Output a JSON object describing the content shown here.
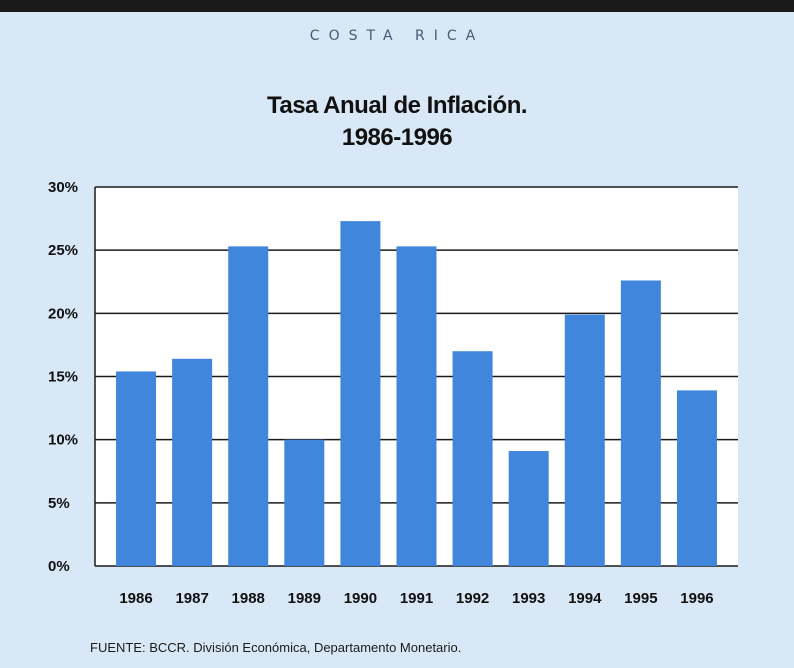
{
  "header": {
    "country": "COSTA RICA",
    "title_line1": "Tasa Anual de Inflación.",
    "title_line2": "1986-1996"
  },
  "footer": {
    "source": "FUENTE:  BCCR. División Económica, Departamento Monetario."
  },
  "colors": {
    "bar": "#3f86dc",
    "plot_background": "#ffffff",
    "panel_background": "#d9e8f6",
    "gridline": "#1a1a1a"
  },
  "chart_data": {
    "type": "bar",
    "title": "Tasa Anual de Inflación. 1986-1996",
    "xlabel": "",
    "ylabel": "",
    "categories": [
      "1986",
      "1987",
      "1988",
      "1989",
      "1990",
      "1991",
      "1992",
      "1993",
      "1994",
      "1995",
      "1996"
    ],
    "values": [
      15.4,
      16.4,
      25.3,
      10.0,
      27.3,
      25.3,
      17.0,
      9.1,
      19.9,
      22.6,
      13.9
    ],
    "ylim": [
      0,
      30
    ],
    "yticks": [
      0,
      5,
      10,
      15,
      20,
      25,
      30
    ],
    "ytick_labels": [
      "0%",
      "5%",
      "10%",
      "15%",
      "20%",
      "25%",
      "30%"
    ],
    "grid": true,
    "legend": "none"
  }
}
